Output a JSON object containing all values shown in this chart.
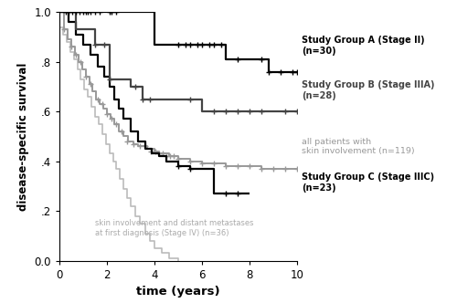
{
  "xlabel": "time (years)",
  "ylabel": "disease-specific survival",
  "xlim": [
    0,
    10.5
  ],
  "ylim": [
    0.0,
    1.05
  ],
  "yticks": [
    0.0,
    0.2,
    0.4,
    0.6,
    0.8,
    1.0
  ],
  "ytick_labels": [
    "0.0",
    ".2",
    ".4",
    ".6",
    ".8",
    "1.0"
  ],
  "xticks": [
    0,
    2,
    4,
    6,
    8,
    10
  ],
  "group_A": {
    "color": "#000000",
    "linewidth": 1.6,
    "times": [
      0,
      0.25,
      0.4,
      0.55,
      0.7,
      0.85,
      1.0,
      1.1,
      1.2,
      1.3,
      1.5,
      1.7,
      2.0,
      2.1,
      2.2,
      2.4,
      3.8,
      4.0,
      4.2,
      4.5,
      4.8,
      5.0,
      5.3,
      5.5,
      5.8,
      6.0,
      6.3,
      6.5,
      6.8,
      7.0,
      7.3,
      7.5,
      8.0,
      8.2,
      8.5,
      8.8,
      9.0,
      9.3,
      9.5,
      9.8,
      10.0
    ],
    "surv": [
      1.0,
      1.0,
      1.0,
      1.0,
      1.0,
      1.0,
      1.0,
      1.0,
      1.0,
      1.0,
      1.0,
      1.0,
      1.0,
      1.0,
      1.0,
      1.0,
      1.0,
      0.87,
      0.87,
      0.87,
      0.87,
      0.87,
      0.87,
      0.87,
      0.87,
      0.87,
      0.87,
      0.87,
      0.87,
      0.81,
      0.81,
      0.81,
      0.81,
      0.81,
      0.81,
      0.76,
      0.76,
      0.76,
      0.76,
      0.76,
      0.76
    ],
    "censor_times": [
      0.25,
      0.4,
      0.55,
      0.7,
      0.85,
      1.0,
      1.1,
      1.2,
      1.3,
      1.5,
      1.7,
      2.1,
      2.2,
      2.4,
      5.0,
      5.3,
      5.5,
      5.8,
      6.0,
      6.3,
      6.5,
      6.8,
      7.5,
      8.5,
      8.8,
      9.3,
      9.8,
      10.0
    ],
    "censor_surv": [
      1.0,
      1.0,
      1.0,
      1.0,
      1.0,
      1.0,
      1.0,
      1.0,
      1.0,
      1.0,
      1.0,
      1.0,
      1.0,
      1.0,
      0.87,
      0.87,
      0.87,
      0.87,
      0.87,
      0.87,
      0.87,
      0.87,
      0.81,
      0.81,
      0.76,
      0.76,
      0.76,
      0.76
    ]
  },
  "group_B": {
    "color": "#444444",
    "linewidth": 1.6,
    "times": [
      0,
      0.7,
      0.9,
      1.1,
      1.3,
      1.5,
      1.7,
      1.9,
      2.1,
      2.2,
      2.3,
      2.5,
      2.7,
      3.0,
      3.2,
      3.5,
      3.8,
      4.2,
      4.6,
      5.0,
      5.5,
      6.0,
      6.5,
      7.0,
      7.5,
      8.0,
      8.5,
      9.0,
      9.5,
      10.0
    ],
    "surv": [
      1.0,
      0.93,
      0.93,
      0.93,
      0.93,
      0.87,
      0.87,
      0.87,
      0.73,
      0.73,
      0.73,
      0.73,
      0.73,
      0.7,
      0.7,
      0.65,
      0.65,
      0.65,
      0.65,
      0.65,
      0.65,
      0.6,
      0.6,
      0.6,
      0.6,
      0.6,
      0.6,
      0.6,
      0.6,
      0.6
    ],
    "censor_times": [
      1.5,
      1.9,
      2.1,
      3.2,
      3.5,
      3.8,
      5.5,
      6.5,
      7.0,
      7.5,
      8.0,
      8.5,
      9.5,
      10.0
    ],
    "censor_surv": [
      0.87,
      0.87,
      0.73,
      0.7,
      0.65,
      0.65,
      0.65,
      0.6,
      0.6,
      0.6,
      0.6,
      0.6,
      0.6,
      0.6
    ]
  },
  "group_all": {
    "color": "#999999",
    "linewidth": 1.4,
    "times": [
      0,
      0.2,
      0.35,
      0.5,
      0.65,
      0.8,
      0.95,
      1.1,
      1.25,
      1.4,
      1.55,
      1.7,
      1.85,
      2.0,
      2.15,
      2.3,
      2.5,
      2.7,
      2.9,
      3.1,
      3.3,
      3.5,
      3.7,
      4.0,
      4.2,
      4.4,
      4.6,
      4.8,
      5.0,
      5.5,
      6.0,
      6.5,
      7.0,
      7.5,
      8.0,
      8.5,
      9.0,
      9.5,
      10.0
    ],
    "surv": [
      1.0,
      0.93,
      0.89,
      0.86,
      0.83,
      0.8,
      0.77,
      0.74,
      0.71,
      0.68,
      0.65,
      0.63,
      0.61,
      0.59,
      0.57,
      0.55,
      0.52,
      0.5,
      0.48,
      0.47,
      0.46,
      0.46,
      0.45,
      0.44,
      0.43,
      0.43,
      0.42,
      0.42,
      0.41,
      0.4,
      0.39,
      0.39,
      0.38,
      0.38,
      0.38,
      0.37,
      0.37,
      0.37,
      0.37
    ],
    "censor_times": [
      0.2,
      0.5,
      0.7,
      0.9,
      1.1,
      1.3,
      1.6,
      1.8,
      2.0,
      2.2,
      2.4,
      2.6,
      2.85,
      3.1,
      3.4,
      3.6,
      3.85,
      4.05,
      4.2,
      4.35,
      4.5,
      4.65,
      4.8,
      5.0,
      5.5,
      6.0,
      6.5,
      7.0,
      7.5,
      8.0,
      8.5,
      9.0,
      9.5,
      10.0
    ],
    "censor_surv": [
      0.93,
      0.86,
      0.83,
      0.8,
      0.74,
      0.71,
      0.65,
      0.63,
      0.59,
      0.57,
      0.55,
      0.52,
      0.48,
      0.47,
      0.46,
      0.46,
      0.44,
      0.44,
      0.43,
      0.43,
      0.42,
      0.42,
      0.42,
      0.41,
      0.4,
      0.39,
      0.39,
      0.38,
      0.38,
      0.38,
      0.37,
      0.37,
      0.37,
      0.37
    ]
  },
  "group_C": {
    "color": "#000000",
    "linewidth": 1.6,
    "times": [
      0,
      0.4,
      0.7,
      1.0,
      1.3,
      1.6,
      1.9,
      2.1,
      2.3,
      2.5,
      2.7,
      3.0,
      3.3,
      3.6,
      3.9,
      4.2,
      4.5,
      5.0,
      5.5,
      6.0,
      6.5,
      7.0,
      7.5,
      8.0
    ],
    "surv": [
      1.0,
      0.96,
      0.91,
      0.87,
      0.83,
      0.78,
      0.74,
      0.7,
      0.65,
      0.61,
      0.57,
      0.52,
      0.48,
      0.45,
      0.43,
      0.42,
      0.4,
      0.38,
      0.37,
      0.37,
      0.27,
      0.27,
      0.27,
      0.27
    ],
    "censor_times": [
      5.0,
      5.5,
      7.0,
      7.5
    ],
    "censor_surv": [
      0.38,
      0.37,
      0.27,
      0.27
    ]
  },
  "group_IV": {
    "color": "#bbbbbb",
    "linewidth": 1.2,
    "times": [
      0,
      0.15,
      0.3,
      0.45,
      0.6,
      0.75,
      0.9,
      1.05,
      1.2,
      1.35,
      1.5,
      1.65,
      1.8,
      1.95,
      2.1,
      2.25,
      2.4,
      2.55,
      2.7,
      2.85,
      3.0,
      3.2,
      3.4,
      3.6,
      3.8,
      4.0,
      4.3,
      4.6,
      5.0
    ],
    "surv": [
      0.94,
      0.91,
      0.88,
      0.84,
      0.81,
      0.77,
      0.73,
      0.69,
      0.66,
      0.62,
      0.58,
      0.55,
      0.51,
      0.47,
      0.43,
      0.4,
      0.37,
      0.33,
      0.29,
      0.25,
      0.22,
      0.18,
      0.15,
      0.11,
      0.08,
      0.05,
      0.03,
      0.01,
      0.0
    ],
    "censor_times": [],
    "censor_surv": []
  },
  "ann_A_text": "Study Group A (Stage II)\n(n=30)",
  "ann_B_text": "Study Group B (Stage IIIA)\n(n=28)",
  "ann_all_text": "all patients with\nskin involvement (n=119)",
  "ann_C_text": "Study Group C (Stage IIIC)\n(n=23)",
  "ann_IV_text": "skin involvement and distant metastases\nat first diagnosis (Stage IV) (n=36)",
  "ann_A_color": "#000000",
  "ann_B_color": "#444444",
  "ann_all_color": "#999999",
  "ann_C_color": "#000000",
  "ann_IV_color": "#aaaaaa",
  "figsize": [
    5.0,
    3.32
  ],
  "dpi": 100
}
